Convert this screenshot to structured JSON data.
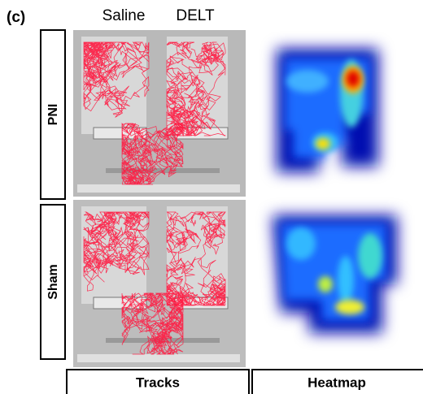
{
  "panel_label": "(c)",
  "columns": {
    "saline": "Saline",
    "delt": "DELT"
  },
  "rows": [
    "PNI",
    "Sham"
  ],
  "footer": [
    "Tracks",
    "Heatmap"
  ]
}
